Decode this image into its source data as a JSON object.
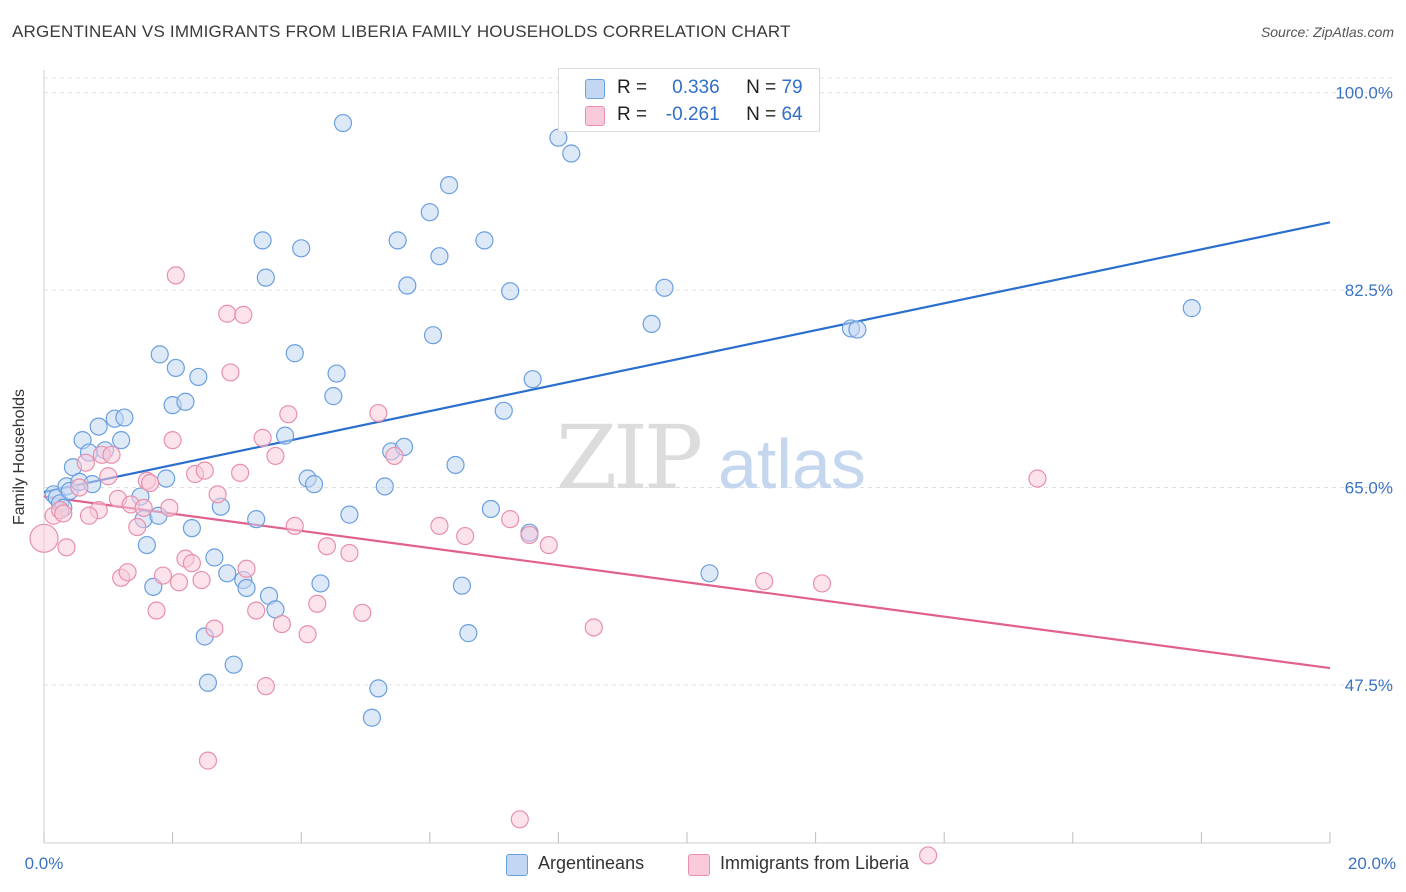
{
  "title": "ARGENTINEAN VS IMMIGRANTS FROM LIBERIA FAMILY HOUSEHOLDS CORRELATION CHART",
  "source": "Source: ZipAtlas.com",
  "watermark": {
    "zip": "ZIP",
    "atlas": "atlas"
  },
  "legend": {
    "r_label": "R =",
    "n_label": "N =",
    "series": [
      {
        "r": "0.336",
        "n": "79"
      },
      {
        "r": "-0.261",
        "n": "64"
      }
    ]
  },
  "chart_data": {
    "type": "scatter",
    "title": "ARGENTINEAN VS IMMIGRANTS FROM LIBERIA FAMILY HOUSEHOLDS CORRELATION CHART",
    "xlabel": "",
    "ylabel": "Family Households",
    "xlim": [
      0,
      20
    ],
    "ylim": [
      33.5,
      102
    ],
    "x_tick_labels": [
      "0.0%",
      "20.0%"
    ],
    "y_ticks": [
      {
        "value": 100.0,
        "label": "100.0%"
      },
      {
        "value": 82.5,
        "label": "82.5%"
      },
      {
        "value": 65.0,
        "label": "65.0%"
      },
      {
        "value": 47.5,
        "label": "47.5%"
      }
    ],
    "legend_position": "bottom-center",
    "series": [
      {
        "name": "Argentineans",
        "color": "#6a9fe0",
        "fill": "#c3d7f3",
        "trend": {
          "x": [
            0,
            20
          ],
          "y": [
            64.6,
            88.5
          ],
          "color": "#2b6fce"
        },
        "points": [
          [
            0.15,
            64.4
          ],
          [
            0.2,
            64.1
          ],
          [
            0.25,
            63.6
          ],
          [
            0.3,
            63.2
          ],
          [
            0.35,
            65.1
          ],
          [
            0.4,
            64.7
          ],
          [
            0.45,
            66.8
          ],
          [
            0.55,
            65.5
          ],
          [
            0.6,
            69.2
          ],
          [
            0.7,
            68.1
          ],
          [
            0.75,
            65.3
          ],
          [
            0.85,
            70.4
          ],
          [
            0.95,
            68.3
          ],
          [
            1.1,
            71.1
          ],
          [
            1.2,
            69.2
          ],
          [
            1.25,
            71.2
          ],
          [
            1.5,
            64.2
          ],
          [
            1.55,
            62.2
          ],
          [
            1.6,
            59.9
          ],
          [
            1.7,
            56.2
          ],
          [
            1.78,
            62.5
          ],
          [
            1.8,
            76.8
          ],
          [
            1.9,
            65.8
          ],
          [
            2.0,
            72.3
          ],
          [
            2.05,
            75.6
          ],
          [
            2.2,
            72.6
          ],
          [
            2.3,
            61.4
          ],
          [
            2.4,
            74.8
          ],
          [
            2.5,
            51.8
          ],
          [
            2.55,
            47.7
          ],
          [
            2.65,
            58.8
          ],
          [
            2.75,
            63.3
          ],
          [
            2.85,
            57.4
          ],
          [
            2.95,
            49.3
          ],
          [
            3.1,
            56.8
          ],
          [
            3.15,
            56.1
          ],
          [
            3.3,
            62.2
          ],
          [
            3.4,
            86.9
          ],
          [
            3.45,
            83.6
          ],
          [
            3.5,
            55.4
          ],
          [
            3.6,
            54.2
          ],
          [
            3.75,
            69.6
          ],
          [
            3.9,
            76.9
          ],
          [
            4.0,
            86.2
          ],
          [
            4.1,
            65.8
          ],
          [
            4.2,
            65.3
          ],
          [
            4.3,
            56.5
          ],
          [
            4.5,
            73.1
          ],
          [
            4.55,
            75.1
          ],
          [
            4.65,
            97.3
          ],
          [
            4.75,
            62.6
          ],
          [
            5.1,
            44.6
          ],
          [
            5.2,
            47.2
          ],
          [
            5.3,
            65.1
          ],
          [
            5.4,
            68.2
          ],
          [
            5.5,
            86.9
          ],
          [
            5.6,
            68.6
          ],
          [
            5.65,
            82.9
          ],
          [
            6.0,
            89.4
          ],
          [
            6.05,
            78.5
          ],
          [
            6.15,
            85.5
          ],
          [
            6.3,
            91.8
          ],
          [
            6.4,
            67.0
          ],
          [
            6.5,
            56.3
          ],
          [
            6.6,
            52.1
          ],
          [
            6.85,
            86.9
          ],
          [
            6.95,
            63.1
          ],
          [
            7.15,
            71.8
          ],
          [
            7.25,
            82.4
          ],
          [
            7.55,
            61.0
          ],
          [
            7.6,
            74.6
          ],
          [
            8.0,
            96.0
          ],
          [
            8.2,
            94.6
          ],
          [
            9.45,
            79.5
          ],
          [
            9.65,
            82.7
          ],
          [
            10.35,
            57.4
          ],
          [
            12.55,
            79.1
          ],
          [
            12.65,
            79.0
          ],
          [
            17.85,
            80.9
          ]
        ]
      },
      {
        "name": "Immigrants from Liberia",
        "color": "#e890ac",
        "fill": "#f8cada",
        "trend": {
          "x": [
            0,
            20
          ],
          "y": [
            64.2,
            49.0
          ],
          "color": "#e0608e"
        },
        "points": [
          [
            0.0,
            60.5
          ],
          [
            0.15,
            62.5
          ],
          [
            0.25,
            63.0
          ],
          [
            0.3,
            62.7
          ],
          [
            0.35,
            59.7
          ],
          [
            0.55,
            65.0
          ],
          [
            0.65,
            67.2
          ],
          [
            0.85,
            63.0
          ],
          [
            0.9,
            67.9
          ],
          [
            1.0,
            66.0
          ],
          [
            1.05,
            67.9
          ],
          [
            1.15,
            64.0
          ],
          [
            1.2,
            57.0
          ],
          [
            1.3,
            57.5
          ],
          [
            1.35,
            63.5
          ],
          [
            1.45,
            61.5
          ],
          [
            1.55,
            63.2
          ],
          [
            1.6,
            65.6
          ],
          [
            1.65,
            65.4
          ],
          [
            1.75,
            54.1
          ],
          [
            1.85,
            57.2
          ],
          [
            1.95,
            63.2
          ],
          [
            2.0,
            69.2
          ],
          [
            2.05,
            83.8
          ],
          [
            2.1,
            56.6
          ],
          [
            2.2,
            58.7
          ],
          [
            2.3,
            58.3
          ],
          [
            2.35,
            66.2
          ],
          [
            2.45,
            56.8
          ],
          [
            2.5,
            66.5
          ],
          [
            2.65,
            52.5
          ],
          [
            2.7,
            64.4
          ],
          [
            2.85,
            80.4
          ],
          [
            2.9,
            75.2
          ],
          [
            3.05,
            66.3
          ],
          [
            3.1,
            80.3
          ],
          [
            3.15,
            57.8
          ],
          [
            3.3,
            54.1
          ],
          [
            3.4,
            69.4
          ],
          [
            3.45,
            47.4
          ],
          [
            3.6,
            67.8
          ],
          [
            3.7,
            52.9
          ],
          [
            3.8,
            71.5
          ],
          [
            3.9,
            61.6
          ],
          [
            4.1,
            52.0
          ],
          [
            4.25,
            54.7
          ],
          [
            4.4,
            59.8
          ],
          [
            4.75,
            59.2
          ],
          [
            4.95,
            53.9
          ],
          [
            5.2,
            71.6
          ],
          [
            5.45,
            67.8
          ],
          [
            6.15,
            61.6
          ],
          [
            6.55,
            60.7
          ],
          [
            7.25,
            62.2
          ],
          [
            7.4,
            35.6
          ],
          [
            7.55,
            60.8
          ],
          [
            7.85,
            59.9
          ],
          [
            8.55,
            52.6
          ],
          [
            11.2,
            56.7
          ],
          [
            12.1,
            56.5
          ],
          [
            13.75,
            32.4
          ],
          [
            15.45,
            65.8
          ],
          [
            2.55,
            40.8
          ],
          [
            0.7,
            62.5
          ]
        ]
      }
    ]
  }
}
